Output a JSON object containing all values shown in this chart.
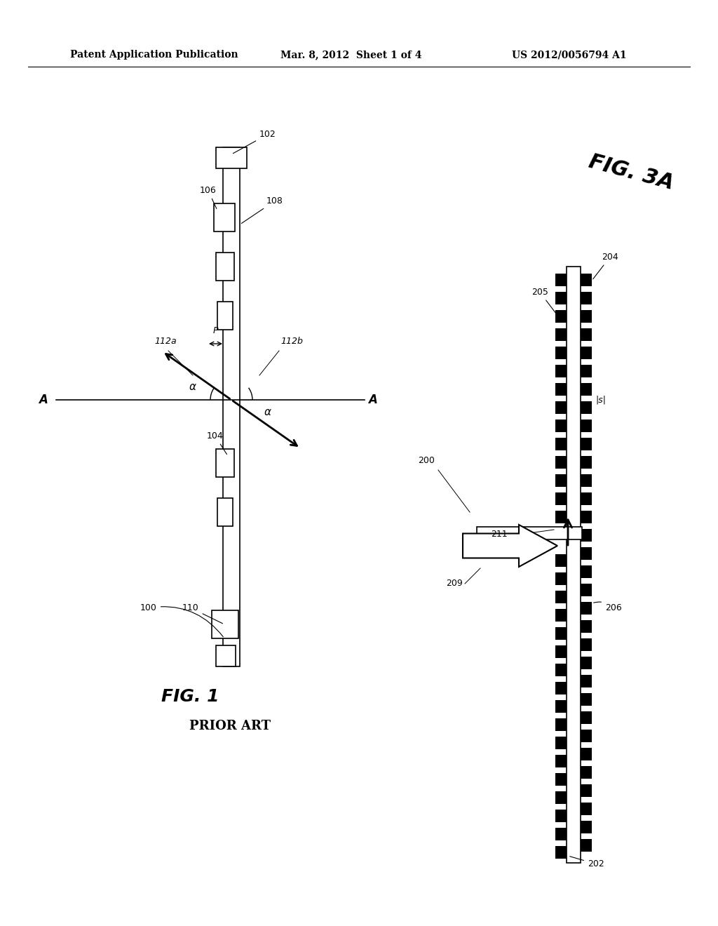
{
  "bg_color": "#ffffff",
  "header_text": "Patent Application Publication",
  "header_date": "Mar. 8, 2012  Sheet 1 of 4",
  "header_patent": "US 2012/0056794 A1",
  "fig1_label": "FIG. 1",
  "fig1_sublabel": "PRIOR ART",
  "fig3a_label": "FIG. 3A",
  "ref_100": "100",
  "ref_102": "102",
  "ref_104": "104",
  "ref_106": "106",
  "ref_108": "108",
  "ref_110": "110",
  "ref_112a": "112a",
  "ref_112b": "112b",
  "ref_200": "200",
  "ref_202": "202",
  "ref_204": "204",
  "ref_205": "205",
  "ref_206": "206",
  "ref_209": "209",
  "ref_211": "211",
  "ref_s": "|s|"
}
